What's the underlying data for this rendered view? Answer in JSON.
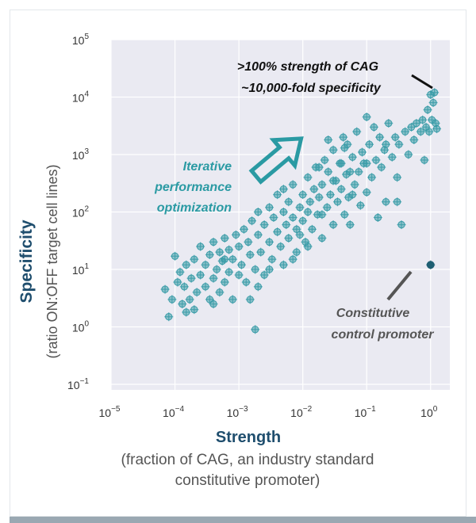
{
  "colors": {
    "plot_background": "#eaeaf2",
    "gridline": "#ffffff",
    "point": "#3a9ca8",
    "control_point": "#1f5f73",
    "axis_title": "#1f4e6e",
    "annotation_teal": "#2a9aa3",
    "bottom_bar": "#9aa8b2"
  },
  "chart_data": {
    "type": "scatter",
    "x_scale": "log",
    "y_scale": "log",
    "xlim": [
      1e-05,
      2
    ],
    "ylim": [
      0.08,
      100000
    ],
    "x_ticks": [
      1e-05,
      0.0001,
      0.001,
      0.01,
      0.1,
      1
    ],
    "y_ticks": [
      0.1,
      1,
      10,
      100,
      1000,
      10000,
      100000
    ],
    "x_tick_labels": [
      {
        "base": "10",
        "exp": "−5"
      },
      {
        "base": "10",
        "exp": "−4"
      },
      {
        "base": "10",
        "exp": "−3"
      },
      {
        "base": "10",
        "exp": "−2"
      },
      {
        "base": "10",
        "exp": "−1"
      },
      {
        "base": "10",
        "exp": "0"
      }
    ],
    "y_tick_labels": [
      {
        "base": "10",
        "exp": "−1"
      },
      {
        "base": "10",
        "exp": "0"
      },
      {
        "base": "10",
        "exp": "1"
      },
      {
        "base": "10",
        "exp": "2"
      },
      {
        "base": "10",
        "exp": "3"
      },
      {
        "base": "10",
        "exp": "4"
      },
      {
        "base": "10",
        "exp": "5"
      }
    ],
    "grid": true,
    "xlabel": "Strength",
    "xlabel_sub": "(fraction of CAG, an industry standard constitutive promoter)",
    "ylabel": "Specificity",
    "ylabel_sub": "(ratio ON:OFF target cell lines)",
    "annotations": {
      "top_line1": ">100% strength of CAG",
      "top_line2": "~10,000-fold specificity",
      "middle_line1": "Iterative",
      "middle_line2": "performance",
      "middle_line3": "optimization",
      "control_line1": "Constitutive",
      "control_line2": "control promoter"
    },
    "control_point": {
      "x": 1.0,
      "y": 12
    },
    "points": [
      [
        7e-05,
        4.5
      ],
      [
        8e-05,
        1.5
      ],
      [
        9e-05,
        3
      ],
      [
        0.0001,
        17
      ],
      [
        0.00011,
        6
      ],
      [
        0.00012,
        9
      ],
      [
        0.00013,
        2.5
      ],
      [
        0.00014,
        5
      ],
      [
        0.00015,
        12
      ],
      [
        0.00017,
        3
      ],
      [
        0.00018,
        7
      ],
      [
        0.0002,
        2
      ],
      [
        0.0002,
        15
      ],
      [
        0.00022,
        4
      ],
      [
        0.00025,
        8
      ],
      [
        0.00025,
        25
      ],
      [
        0.0003,
        5
      ],
      [
        0.0003,
        12
      ],
      [
        0.00035,
        3
      ],
      [
        0.00035,
        18
      ],
      [
        0.0004,
        7
      ],
      [
        0.0004,
        30
      ],
      [
        0.00045,
        10
      ],
      [
        0.0005,
        4
      ],
      [
        0.0005,
        20
      ],
      [
        0.00055,
        14
      ],
      [
        0.0006,
        6
      ],
      [
        0.0006,
        35
      ],
      [
        0.0007,
        9
      ],
      [
        0.0007,
        22
      ],
      [
        0.0008,
        3
      ],
      [
        0.0008,
        15
      ],
      [
        0.0009,
        40
      ],
      [
        0.001,
        8
      ],
      [
        0.001,
        25
      ],
      [
        0.0011,
        12
      ],
      [
        0.0012,
        50
      ],
      [
        0.0013,
        6
      ],
      [
        0.0014,
        30
      ],
      [
        0.0015,
        18
      ],
      [
        0.0016,
        70
      ],
      [
        0.0018,
        0.9
      ],
      [
        0.0018,
        10
      ],
      [
        0.002,
        40
      ],
      [
        0.002,
        100
      ],
      [
        0.0022,
        20
      ],
      [
        0.0025,
        60
      ],
      [
        0.0025,
        8
      ],
      [
        0.003,
        30
      ],
      [
        0.003,
        120
      ],
      [
        0.0033,
        15
      ],
      [
        0.0035,
        80
      ],
      [
        0.004,
        45
      ],
      [
        0.004,
        200
      ],
      [
        0.0045,
        25
      ],
      [
        0.005,
        100
      ],
      [
        0.005,
        12
      ],
      [
        0.0055,
        60
      ],
      [
        0.006,
        150
      ],
      [
        0.006,
        35
      ],
      [
        0.007,
        80
      ],
      [
        0.007,
        300
      ],
      [
        0.008,
        50
      ],
      [
        0.008,
        20
      ],
      [
        0.009,
        120
      ],
      [
        0.01,
        200
      ],
      [
        0.01,
        70
      ],
      [
        0.011,
        30
      ],
      [
        0.012,
        400
      ],
      [
        0.012,
        100
      ],
      [
        0.013,
        150
      ],
      [
        0.014,
        50
      ],
      [
        0.015,
        250
      ],
      [
        0.016,
        600
      ],
      [
        0.017,
        90
      ],
      [
        0.018,
        180
      ],
      [
        0.02,
        35
      ],
      [
        0.02,
        300
      ],
      [
        0.022,
        800
      ],
      [
        0.024,
        120
      ],
      [
        0.025,
        500
      ],
      [
        0.027,
        200
      ],
      [
        0.03,
        60
      ],
      [
        0.03,
        1200
      ],
      [
        0.033,
        350
      ],
      [
        0.035,
        150
      ],
      [
        0.038,
        700
      ],
      [
        0.04,
        250
      ],
      [
        0.043,
        2000
      ],
      [
        0.045,
        90
      ],
      [
        0.048,
        450
      ],
      [
        0.05,
        1500
      ],
      [
        0.052,
        180
      ],
      [
        0.055,
        60
      ],
      [
        0.06,
        900
      ],
      [
        0.065,
        300
      ],
      [
        0.07,
        2500
      ],
      [
        0.075,
        500
      ],
      [
        0.08,
        130
      ],
      [
        0.085,
        1100
      ],
      [
        0.09,
        700
      ],
      [
        0.1,
        4500
      ],
      [
        0.1,
        220
      ],
      [
        0.11,
        1500
      ],
      [
        0.12,
        400
      ],
      [
        0.13,
        3000
      ],
      [
        0.14,
        800
      ],
      [
        0.15,
        80
      ],
      [
        0.16,
        2000
      ],
      [
        0.17,
        600
      ],
      [
        0.19,
        1200
      ],
      [
        0.2,
        150
      ],
      [
        0.22,
        3500
      ],
      [
        0.25,
        900
      ],
      [
        0.28,
        2000
      ],
      [
        0.3,
        400
      ],
      [
        0.32,
        1500
      ],
      [
        0.35,
        60
      ],
      [
        0.4,
        2500
      ],
      [
        0.45,
        1000
      ],
      [
        0.5,
        3000
      ],
      [
        0.55,
        1800
      ],
      [
        0.6,
        3500
      ],
      [
        0.7,
        2500
      ],
      [
        0.75,
        4000
      ],
      [
        0.8,
        800
      ],
      [
        0.85,
        3000
      ],
      [
        0.9,
        6000
      ],
      [
        0.95,
        2500
      ],
      [
        1.0,
        11000
      ],
      [
        1.05,
        4000
      ],
      [
        1.1,
        8000
      ],
      [
        1.15,
        12000
      ],
      [
        1.2,
        3500
      ],
      [
        1.25,
        2800
      ],
      [
        0.3,
        150
      ],
      [
        0.06,
        200
      ],
      [
        0.04,
        700
      ],
      [
        0.02,
        90
      ],
      [
        0.009,
        40
      ],
      [
        0.005,
        250
      ],
      [
        0.003,
        10
      ],
      [
        0.002,
        5
      ],
      [
        0.0015,
        3
      ],
      [
        0.0006,
        15
      ],
      [
        0.0004,
        2.5
      ],
      [
        0.00015,
        1.8
      ],
      [
        0.018,
        600
      ],
      [
        0.025,
        1800
      ],
      [
        0.03,
        350
      ],
      [
        0.045,
        1300
      ],
      [
        0.055,
        500
      ],
      [
        0.012,
        25
      ],
      [
        0.007,
        15
      ],
      [
        0.1,
        700
      ],
      [
        0.2,
        1500
      ]
    ]
  }
}
